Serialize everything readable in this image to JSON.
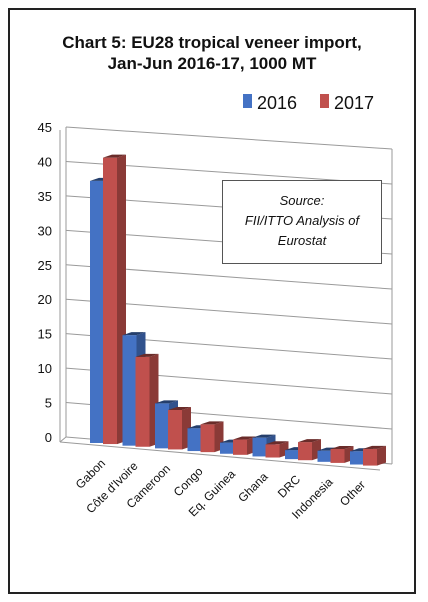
{
  "chart_data": {
    "type": "bar",
    "title_line1": "Chart 5: EU28 tropical veneer import,",
    "title_line2": "Jan-Jun 2016-17, 1000 MT",
    "categories": [
      "Gabon",
      "Côte d'Ivoire",
      "Cameroon",
      "Congo",
      "Eq. Guinea",
      "Ghana",
      "DRC",
      "Indonesia",
      "Other"
    ],
    "series": [
      {
        "name": "2016",
        "color": "#4472c4",
        "values": [
          38.0,
          16.0,
          6.5,
          3.3,
          1.6,
          2.7,
          1.3,
          1.6,
          1.9
        ]
      },
      {
        "name": "2017",
        "color": "#c0504d",
        "values": [
          41.5,
          13.0,
          5.7,
          4.0,
          2.2,
          1.9,
          2.6,
          2.0,
          2.4
        ]
      }
    ],
    "yticks": [
      "0",
      "5",
      "10",
      "15",
      "20",
      "25",
      "30",
      "35",
      "40",
      "45"
    ],
    "ylim": [
      0,
      45
    ],
    "grid": true,
    "legend_position": "top-right",
    "source_line1": "Source:",
    "source_line2": "FII/ITTO Analysis of",
    "source_line3": "Eurostat"
  }
}
